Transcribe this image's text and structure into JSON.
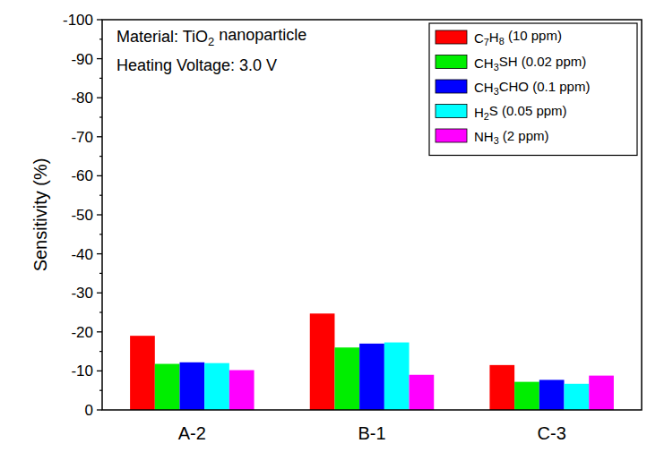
{
  "chart_data": {
    "type": "bar",
    "ylabel": "Sensitivity (%)",
    "annotations": [
      "Material: TiO2 nanoparticle",
      "Heating Voltage: 3.0 V"
    ],
    "categories": [
      "A-2",
      "B-1",
      "C-3"
    ],
    "series": [
      {
        "name": "C7H8 (10 ppm)",
        "color": "#ff0000",
        "values": [
          -19,
          -24.7,
          -11.5
        ]
      },
      {
        "name": "CH3SH (0.02 ppm)",
        "color": "#00ee00",
        "values": [
          -11.8,
          -16,
          -7.2
        ]
      },
      {
        "name": "CH3CHO (0.1 ppm)",
        "color": "#0000ff",
        "values": [
          -12.2,
          -17,
          -7.7
        ]
      },
      {
        "name": "H2S (0.05 ppm)",
        "color": "#00ffff",
        "values": [
          -12,
          -17.3,
          -6.7
        ]
      },
      {
        "name": "NH3 (2 ppm)",
        "color": "#ff00ff",
        "values": [
          -10.2,
          -9,
          -8.8
        ]
      }
    ],
    "ylim": [
      0,
      -100
    ],
    "yticks": [
      0,
      -10,
      -20,
      -30,
      -40,
      -50,
      -60,
      -70,
      -80,
      -90,
      -100
    ],
    "legend": "upper right",
    "grid": false
  }
}
